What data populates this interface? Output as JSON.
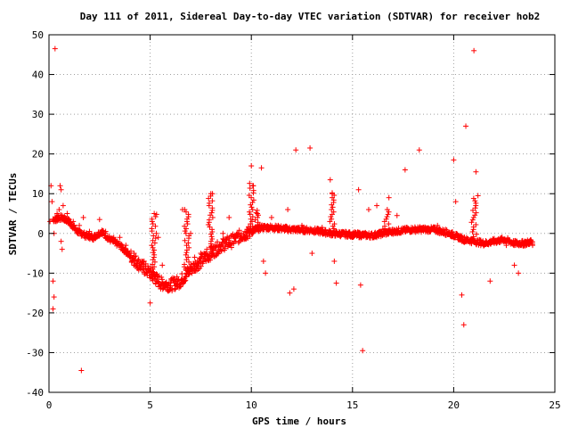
{
  "chart_data": {
    "type": "scatter",
    "title": "Day 111 of 2011, Sidereal Day-to-day VTEC variation (SDTVAR) for receiver hob2",
    "xlabel": "GPS time / hours",
    "ylabel": "SDTVAR / TECUs",
    "xlim": [
      0,
      25
    ],
    "ylim": [
      -40,
      50
    ],
    "xticks": [
      "0",
      "5",
      "10",
      "15",
      "20",
      "25"
    ],
    "yticks": [
      "-40",
      "-30",
      "-20",
      "-10",
      "0",
      "10",
      "20",
      "30",
      "40",
      "50"
    ],
    "grid": true,
    "marker": "+",
    "color": "#ff0000",
    "series": [
      {
        "points": [
          [
            0.05,
            3
          ],
          [
            0.1,
            12
          ],
          [
            0.15,
            8
          ],
          [
            0.2,
            -12
          ],
          [
            0.2,
            -19
          ],
          [
            0.25,
            -16
          ],
          [
            0.25,
            0
          ],
          [
            0.3,
            46.5
          ],
          [
            0.35,
            3
          ],
          [
            0.4,
            5
          ],
          [
            0.45,
            4.5
          ],
          [
            0.5,
            6
          ],
          [
            0.55,
            12
          ],
          [
            0.6,
            11
          ],
          [
            0.6,
            -2
          ],
          [
            0.65,
            -4
          ],
          [
            0.7,
            7
          ],
          [
            0.8,
            4
          ],
          [
            0.9,
            5
          ],
          [
            1.0,
            3.5
          ],
          [
            1.2,
            3
          ],
          [
            1.5,
            2
          ],
          [
            1.6,
            -34.5
          ],
          [
            1.7,
            4
          ],
          [
            2.0,
            0.5
          ],
          [
            2.5,
            3.5
          ],
          [
            2.8,
            0.5
          ],
          [
            3.2,
            -1
          ],
          [
            3.5,
            -1
          ],
          [
            3.8,
            -3
          ],
          [
            4.2,
            -5
          ],
          [
            4.7,
            -7
          ],
          [
            5.0,
            -17.5
          ],
          [
            5.2,
            5
          ],
          [
            5.4,
            -1
          ],
          [
            5.6,
            -8
          ],
          [
            5.8,
            -13
          ],
          [
            6.0,
            -14
          ],
          [
            6.3,
            -12
          ],
          [
            6.6,
            6
          ],
          [
            6.8,
            -10
          ],
          [
            7.0,
            0
          ],
          [
            7.2,
            -6
          ],
          [
            7.5,
            -5
          ],
          [
            7.8,
            -4
          ],
          [
            8.0,
            10
          ],
          [
            8.3,
            -3
          ],
          [
            8.6,
            0
          ],
          [
            8.9,
            4
          ],
          [
            9.2,
            -1
          ],
          [
            9.5,
            0
          ],
          [
            9.8,
            1
          ],
          [
            10.0,
            17
          ],
          [
            10.1,
            12
          ],
          [
            10.3,
            5
          ],
          [
            10.5,
            16.5
          ],
          [
            10.6,
            -7
          ],
          [
            10.7,
            -10
          ],
          [
            11.0,
            4
          ],
          [
            11.3,
            1
          ],
          [
            11.6,
            1
          ],
          [
            11.8,
            6
          ],
          [
            11.9,
            -15
          ],
          [
            12.1,
            -14
          ],
          [
            12.2,
            21
          ],
          [
            12.5,
            2
          ],
          [
            12.9,
            21.5
          ],
          [
            13.0,
            -5
          ],
          [
            13.5,
            1.5
          ],
          [
            13.9,
            13.5
          ],
          [
            14.0,
            10
          ],
          [
            14.1,
            -7
          ],
          [
            14.2,
            -12.5
          ],
          [
            14.5,
            0
          ],
          [
            15.0,
            -0.5
          ],
          [
            15.3,
            11
          ],
          [
            15.4,
            -13
          ],
          [
            15.5,
            -29.5
          ],
          [
            15.8,
            6
          ],
          [
            16.2,
            7
          ],
          [
            16.5,
            1
          ],
          [
            16.8,
            9
          ],
          [
            17.2,
            4.5
          ],
          [
            17.6,
            16
          ],
          [
            18.0,
            1
          ],
          [
            18.3,
            21
          ],
          [
            18.8,
            1
          ],
          [
            19.2,
            2
          ],
          [
            19.6,
            1
          ],
          [
            20.0,
            18.5
          ],
          [
            20.1,
            8
          ],
          [
            20.2,
            -1
          ],
          [
            20.4,
            -15.5
          ],
          [
            20.5,
            -23
          ],
          [
            20.6,
            27
          ],
          [
            21.0,
            46
          ],
          [
            21.1,
            15.5
          ],
          [
            21.2,
            9.5
          ],
          [
            21.5,
            -3
          ],
          [
            21.8,
            -12
          ],
          [
            22.2,
            -2
          ],
          [
            22.6,
            -3
          ],
          [
            23.0,
            -8
          ],
          [
            23.2,
            -10
          ],
          [
            23.5,
            -2
          ],
          [
            23.9,
            -3
          ]
        ]
      }
    ]
  }
}
